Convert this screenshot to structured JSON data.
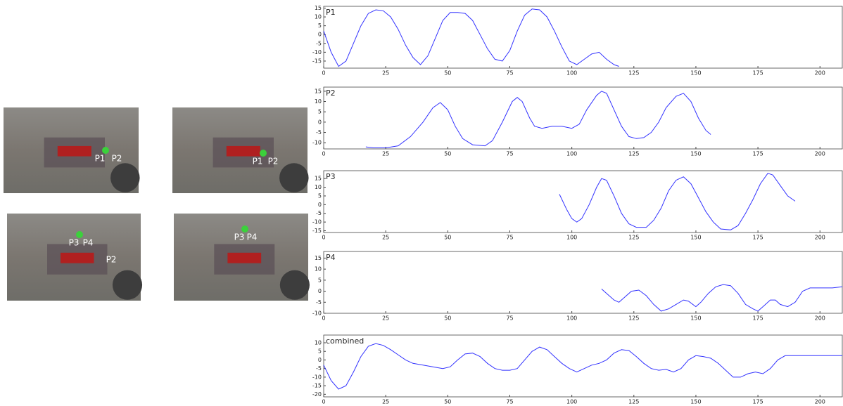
{
  "images": [
    {
      "labels": [
        "P1",
        "P2"
      ]
    },
    {
      "labels": [
        "P1",
        "P2"
      ]
    },
    {
      "labels": [
        "P3",
        "P4",
        "P2"
      ]
    },
    {
      "labels": [
        "P3",
        "P4"
      ]
    }
  ],
  "chart_data": [
    {
      "type": "line",
      "title": "P1",
      "color": "#3333ff",
      "xlim": [
        0,
        209
      ],
      "ylim": [
        -19,
        16
      ],
      "xticks": [
        0,
        25,
        50,
        75,
        100,
        125,
        150,
        175,
        200
      ],
      "yticks": [
        15,
        10,
        5,
        0,
        -5,
        -10,
        -15
      ],
      "x": [
        0,
        3,
        6,
        9,
        12,
        15,
        18,
        21,
        24,
        27,
        30,
        33,
        36,
        39,
        42,
        45,
        48,
        51,
        54,
        57,
        60,
        63,
        66,
        69,
        72,
        75,
        78,
        81,
        84,
        87,
        90,
        93,
        96,
        99,
        102,
        105,
        108,
        111,
        114,
        117,
        119
      ],
      "values": [
        2,
        -10,
        -18,
        -15,
        -5,
        5,
        12,
        14,
        13.5,
        10,
        3,
        -6,
        -13,
        -17,
        -12,
        -2,
        8,
        12.5,
        12.5,
        12,
        8,
        0,
        -8,
        -14,
        -15,
        -9,
        2,
        11,
        14.5,
        14,
        10,
        2,
        -7,
        -15,
        -17,
        -14,
        -11,
        -10,
        -14,
        -17,
        -18
      ]
    },
    {
      "type": "line",
      "title": "P2",
      "color": "#3333ff",
      "xlim": [
        0,
        209
      ],
      "ylim": [
        -13,
        17
      ],
      "xticks": [
        0,
        25,
        50,
        75,
        100,
        125,
        150,
        175,
        200
      ],
      "yticks": [
        15,
        10,
        5,
        0,
        -5,
        -10
      ],
      "x": [
        17,
        20,
        25,
        30,
        35,
        40,
        44,
        47,
        50,
        53,
        56,
        60,
        65,
        68,
        72,
        76,
        78,
        80,
        83,
        85,
        88,
        92,
        96,
        100,
        103,
        106,
        110,
        112,
        114,
        117,
        120,
        123,
        126,
        129,
        132,
        135,
        138,
        142,
        145,
        148,
        151,
        154,
        156
      ],
      "values": [
        -12,
        -12.5,
        -12.5,
        -11.5,
        -7,
        0,
        7,
        9.5,
        6,
        -2,
        -8,
        -11,
        -11.5,
        -9,
        0,
        10,
        12,
        10,
        2,
        -2,
        -3,
        -2,
        -2,
        -3,
        -1,
        6,
        13,
        15,
        14,
        6,
        -2,
        -7,
        -8,
        -7.5,
        -5,
        0,
        7,
        12.5,
        14,
        10,
        2,
        -4,
        -6
      ]
    },
    {
      "type": "line",
      "title": "P3",
      "color": "#3333ff",
      "xlim": [
        0,
        209
      ],
      "ylim": [
        -16,
        19.5
      ],
      "xticks": [
        0,
        25,
        50,
        75,
        100,
        125,
        150,
        175,
        200
      ],
      "yticks": [
        15,
        10,
        5,
        0,
        -5,
        -10,
        -15
      ],
      "x": [
        95,
        98,
        100,
        102,
        104,
        107,
        110,
        112,
        114,
        117,
        120,
        123,
        126,
        130,
        133,
        136,
        139,
        142,
        145,
        148,
        151,
        154,
        157,
        160,
        164,
        167,
        170,
        173,
        176,
        179,
        181,
        184,
        187,
        190
      ],
      "values": [
        6,
        -3,
        -8,
        -10,
        -8,
        0,
        10,
        15,
        14,
        5,
        -5,
        -11,
        -13,
        -13,
        -9,
        -2,
        8,
        14,
        16,
        12,
        4,
        -4,
        -10,
        -14,
        -14.5,
        -12,
        -5,
        3,
        12,
        18,
        17,
        11,
        5,
        2
      ]
    },
    {
      "type": "line",
      "title": "P4",
      "color": "#3333ff",
      "xlim": [
        0,
        209
      ],
      "ylim": [
        -10,
        18
      ],
      "xticks": [
        0,
        25,
        50,
        75,
        100,
        125,
        150,
        175,
        200
      ],
      "yticks": [
        15,
        10,
        5,
        0,
        -5,
        -10
      ],
      "x": [
        112,
        114,
        117,
        119,
        121,
        124,
        127,
        130,
        133,
        136,
        139,
        142,
        145,
        147,
        150,
        152,
        155,
        158,
        161,
        164,
        167,
        170,
        173,
        175,
        177,
        180,
        182,
        184,
        187,
        190,
        193,
        196,
        200,
        205,
        209
      ],
      "values": [
        1,
        -1,
        -4,
        -5,
        -3,
        0,
        0.5,
        -2,
        -6,
        -9,
        -8,
        -6,
        -4,
        -4.5,
        -7,
        -5,
        -1,
        2,
        3,
        2.5,
        -1,
        -6,
        -8,
        -9,
        -7,
        -4,
        -4,
        -6,
        -7,
        -5,
        0,
        1.5,
        1.5,
        1.5,
        2
      ]
    },
    {
      "type": "line",
      "title": "combined",
      "color": "#3333ff",
      "xlim": [
        0,
        209
      ],
      "ylim": [
        -21.5,
        14.5
      ],
      "xticks": [
        0,
        25,
        50,
        75,
        100,
        125,
        150,
        175,
        200
      ],
      "yticks": [
        10,
        5,
        0,
        -5,
        -10,
        -15,
        -20
      ],
      "x": [
        0,
        3,
        6,
        9,
        12,
        15,
        18,
        21,
        24,
        27,
        30,
        33,
        36,
        40,
        44,
        48,
        51,
        54,
        57,
        60,
        63,
        66,
        69,
        72,
        75,
        78,
        81,
        84,
        87,
        90,
        93,
        96,
        99,
        102,
        105,
        108,
        111,
        114,
        117,
        120,
        123,
        126,
        129,
        132,
        135,
        138,
        141,
        144,
        147,
        150,
        153,
        156,
        159,
        162,
        165,
        168,
        171,
        174,
        177,
        180,
        183,
        186,
        190,
        195,
        200,
        209
      ],
      "values": [
        -3,
        -12,
        -17,
        -15,
        -7,
        2,
        8,
        9.5,
        8.5,
        6,
        3,
        0,
        -2,
        -3,
        -4,
        -5,
        -4,
        0,
        3.5,
        4,
        2,
        -2,
        -5,
        -6,
        -6,
        -5,
        0,
        5,
        7.5,
        6,
        2,
        -2,
        -5,
        -7,
        -5,
        -3,
        -2,
        0,
        4,
        6,
        5.5,
        2,
        -2,
        -5,
        -6,
        -5.5,
        -7,
        -5,
        0,
        2.5,
        2,
        1,
        -2,
        -6,
        -10,
        -10,
        -8,
        -7,
        -8,
        -5,
        0,
        2.5,
        2.5,
        2.5,
        2.5,
        2.5
      ]
    }
  ]
}
